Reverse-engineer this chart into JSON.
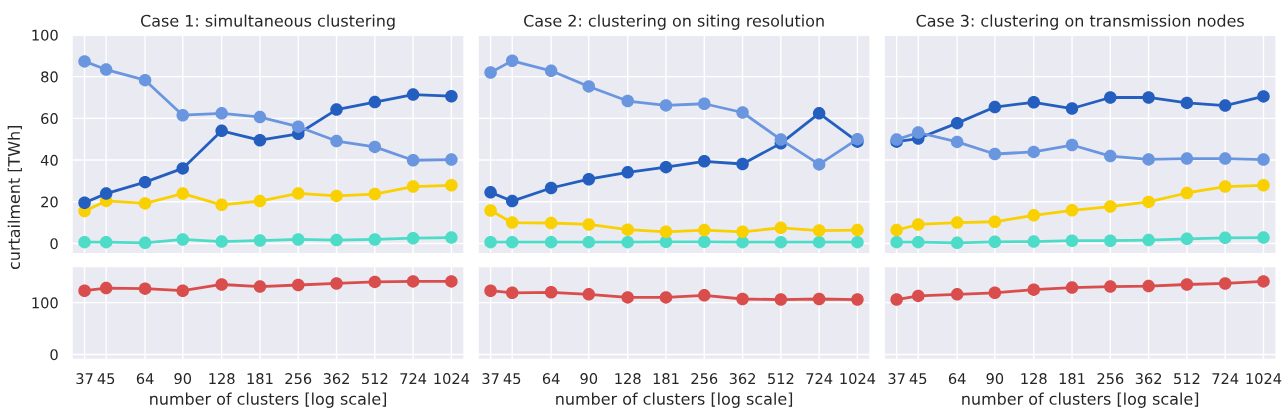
{
  "chart_data": [
    {
      "type": "line",
      "title": "Case 1: simultaneous clustering",
      "ylabel": "curtailment [TWh]",
      "x": [
        37,
        45,
        64,
        90,
        128,
        181,
        256,
        362,
        512,
        724,
        1024
      ],
      "log": "x",
      "xlim": [
        33,
        1150
      ],
      "xticks": [
        37,
        45,
        64,
        90,
        128,
        181,
        256,
        362,
        512,
        724,
        1024
      ],
      "ylim": [
        -5,
        100
      ],
      "yticks": [
        0,
        20,
        40,
        60,
        80,
        100
      ],
      "tick_labels": "y",
      "grid": true,
      "marker": "circle",
      "line_style": "solid",
      "series": [
        {
          "color": "#6a96e0",
          "values": [
            87.3,
            83.4,
            78.3,
            61.5,
            62.4,
            60.6,
            56,
            49.1,
            46.3,
            39.9,
            40.2
          ]
        },
        {
          "color": "#245fbf",
          "values": [
            19.5,
            23.9,
            29.4,
            36,
            54,
            49.5,
            52.6,
            64.2,
            67.8,
            71.4,
            70.6
          ]
        },
        {
          "color": "#f9d002",
          "values": [
            15.5,
            20.4,
            19.2,
            23.9,
            18.5,
            20.3,
            24,
            22.8,
            23.7,
            27.3,
            27.9
          ]
        },
        {
          "color": "#4cdcc8",
          "values": [
            0.6,
            0.6,
            0.3,
            1.9,
            0.9,
            1.4,
            1.9,
            1.6,
            1.9,
            2.5,
            2.8
          ]
        }
      ]
    },
    {
      "type": "line",
      "title": "Case 2: clustering on siting resolution",
      "x": [
        37,
        45,
        64,
        90,
        128,
        181,
        256,
        362,
        512,
        724,
        1024
      ],
      "log": "x",
      "xlim": [
        33,
        1150
      ],
      "xticks": [
        37,
        45,
        64,
        90,
        128,
        181,
        256,
        362,
        512,
        724,
        1024
      ],
      "ylim": [
        -5,
        100
      ],
      "yticks": [
        0,
        20,
        40,
        60,
        80,
        100
      ],
      "tick_labels": false,
      "grid": true,
      "marker": "circle",
      "line_style": "solid",
      "series": [
        {
          "color": "#6a96e0",
          "values": [
            82,
            87.6,
            82.8,
            75.3,
            68.3,
            66.2,
            67,
            62.8,
            49.8,
            37.9,
            50
          ]
        },
        {
          "color": "#245fbf",
          "values": [
            24.5,
            20.3,
            26.6,
            30.8,
            34.1,
            36.6,
            39.4,
            38.1,
            48,
            62.4,
            48.8
          ]
        },
        {
          "color": "#f9d002",
          "values": [
            15.8,
            10,
            9.8,
            9.1,
            6.6,
            5.6,
            6.4,
            5.6,
            7.5,
            6.2,
            6.4
          ]
        },
        {
          "color": "#4cdcc8",
          "values": [
            0.6,
            0.6,
            0.6,
            0.6,
            0.6,
            0.8,
            0.8,
            0.6,
            0.6,
            0.6,
            0.6
          ]
        }
      ]
    },
    {
      "type": "line",
      "title": "Case 3: clustering on transmission nodes",
      "x": [
        37,
        45,
        64,
        90,
        128,
        181,
        256,
        362,
        512,
        724,
        1024
      ],
      "log": "x",
      "xlim": [
        33,
        1150
      ],
      "xticks": [
        37,
        45,
        64,
        90,
        128,
        181,
        256,
        362,
        512,
        724,
        1024
      ],
      "ylim": [
        -5,
        100
      ],
      "yticks": [
        0,
        20,
        40,
        60,
        80,
        100
      ],
      "tick_labels": false,
      "grid": true,
      "marker": "circle",
      "line_style": "solid",
      "series": [
        {
          "color": "#6a96e0",
          "values": [
            49.8,
            53.2,
            48.7,
            42.9,
            43.9,
            47.2,
            41.9,
            40.3,
            40.7,
            40.7,
            40.2
          ]
        },
        {
          "color": "#245fbf",
          "values": [
            48.8,
            50.3,
            57.7,
            65.4,
            67.7,
            64.7,
            70,
            70,
            67.4,
            66.1,
            70.5
          ]
        },
        {
          "color": "#f9d002",
          "values": [
            6.4,
            9.1,
            10,
            10.4,
            13.5,
            15.9,
            17.7,
            19.9,
            24.2,
            27.3,
            27.9
          ]
        },
        {
          "color": "#4cdcc8",
          "values": [
            0.6,
            0.6,
            0.3,
            0.8,
            0.9,
            1.3,
            1.3,
            1.6,
            2.2,
            2.7,
            2.8
          ]
        }
      ]
    },
    {
      "type": "line",
      "xlabel": "number of clusters [log scale]",
      "x": [
        37,
        45,
        64,
        90,
        128,
        181,
        256,
        362,
        512,
        724,
        1024
      ],
      "log": "x",
      "xlim": [
        33,
        1150
      ],
      "xticks": [
        37,
        45,
        64,
        90,
        128,
        181,
        256,
        362,
        512,
        724,
        1024
      ],
      "ylim": [
        -10,
        170
      ],
      "yticks": [
        0,
        100
      ],
      "grid": true,
      "marker": "circle",
      "line_style": "solid",
      "series": [
        {
          "color": "#d94d4d",
          "values": [
            123,
            128,
            127,
            123,
            135,
            131,
            134,
            137,
            140,
            141,
            141
          ]
        }
      ]
    },
    {
      "type": "line",
      "xlabel": "number of clusters [log scale]",
      "x": [
        37,
        45,
        64,
        90,
        128,
        181,
        256,
        362,
        512,
        724,
        1024
      ],
      "log": "x",
      "xlim": [
        33,
        1150
      ],
      "xticks": [
        37,
        45,
        64,
        90,
        128,
        181,
        256,
        362,
        512,
        724,
        1024
      ],
      "ylim": [
        -10,
        170
      ],
      "yticks": [
        0,
        100
      ],
      "tick_labels": "x",
      "grid": true,
      "marker": "circle",
      "line_style": "solid",
      "series": [
        {
          "color": "#d94d4d",
          "values": [
            123,
            119,
            120,
            116,
            110,
            110,
            114,
            107,
            106,
            107,
            106
          ]
        }
      ]
    },
    {
      "type": "line",
      "xlabel": "number of clusters [log scale]",
      "x": [
        37,
        45,
        64,
        90,
        128,
        181,
        256,
        362,
        512,
        724,
        1024
      ],
      "log": "x",
      "xlim": [
        33,
        1150
      ],
      "xticks": [
        37,
        45,
        64,
        90,
        128,
        181,
        256,
        362,
        512,
        724,
        1024
      ],
      "ylim": [
        -10,
        170
      ],
      "yticks": [
        0,
        100
      ],
      "tick_labels": "x",
      "grid": true,
      "marker": "circle",
      "line_style": "solid",
      "series": [
        {
          "color": "#d94d4d",
          "values": [
            106,
            113,
            116,
            119,
            125,
            129,
            131,
            132,
            135,
            137,
            141
          ]
        }
      ]
    }
  ]
}
